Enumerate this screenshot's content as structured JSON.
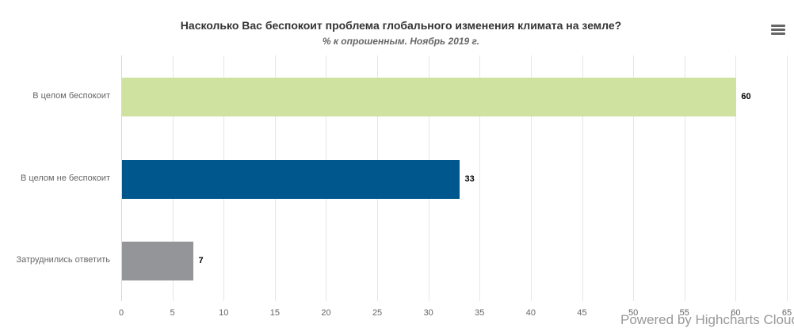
{
  "header": {
    "title": "Насколько Вас беспокоит проблема глобального изменения климата на земле?",
    "subtitle": "% к опрошенным. Ноябрь 2019 г.",
    "menu_icon": "hamburger-menu-icon"
  },
  "credits": "Powered by Highcharts Cloud",
  "colors": {
    "bar1": "#cfe29f",
    "bar2": "#00578e",
    "bar3": "#939598",
    "grid": "#e6e6e6",
    "axis": "#ccd6eb"
  },
  "chart_data": {
    "type": "bar",
    "orientation": "horizontal",
    "title": "Насколько Вас беспокоит проблема глобального изменения климата на земле?",
    "subtitle": "% к опрошенным. Ноябрь 2019 г.",
    "categories": [
      "В целом беспокоит",
      "В целом не беспокоит",
      "Затруднились ответить"
    ],
    "values": [
      60,
      33,
      7
    ],
    "value_labels": [
      "60",
      "33",
      "7"
    ],
    "bar_colors": [
      "#cfe29f",
      "#00578e",
      "#939598"
    ],
    "xlabel": "",
    "ylabel": "",
    "ylim": [
      0,
      65
    ],
    "ticks": [
      "0",
      "5",
      "10",
      "15",
      "20",
      "25",
      "30",
      "35",
      "40",
      "45",
      "50",
      "55",
      "60",
      "65"
    ],
    "grid": true,
    "legend": "none"
  }
}
